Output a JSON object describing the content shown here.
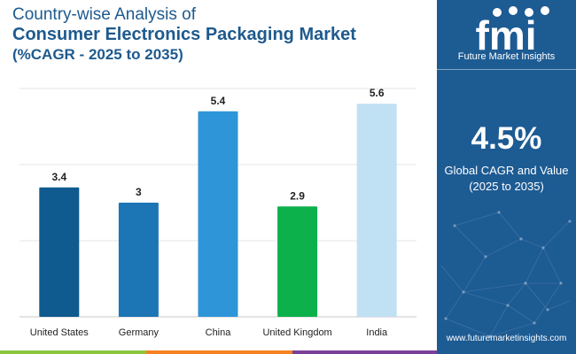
{
  "title": {
    "line1": "Country-wise Analysis of",
    "line2": "Consumer Electronics Packaging Market",
    "line3": "(%CAGR - 2025 to 2035)"
  },
  "brand": {
    "logo_text": "fmi",
    "name": "Future Market Insights",
    "website": "www.futuremarketinsights.com"
  },
  "summary": {
    "value": "4.5%",
    "label_line1": "Global CAGR and Value",
    "label_line2": "(2025 to 2035)"
  },
  "chart_data": {
    "type": "bar",
    "categories": [
      "United States",
      "Germany",
      "China",
      "United Kingdom",
      "India"
    ],
    "values": [
      3.4,
      3,
      5.4,
      2.9,
      5.6
    ],
    "value_labels": [
      "3.4",
      "3",
      "5.4",
      "2.9",
      "5.6"
    ],
    "colors": [
      "#0f5a8e",
      "#1c75b4",
      "#2e95d8",
      "#0db14b",
      "#c0e0f3"
    ],
    "ylim": [
      0,
      6
    ],
    "grid": true,
    "title": "Consumer Electronics Packaging Market",
    "xlabel": "",
    "ylabel": ""
  },
  "colors": {
    "title": "#1e5a8e",
    "panel": "#1d5b93",
    "stripe": [
      "#8cc63f",
      "#f58220",
      "#7b3f98",
      "#1d5b93"
    ]
  }
}
